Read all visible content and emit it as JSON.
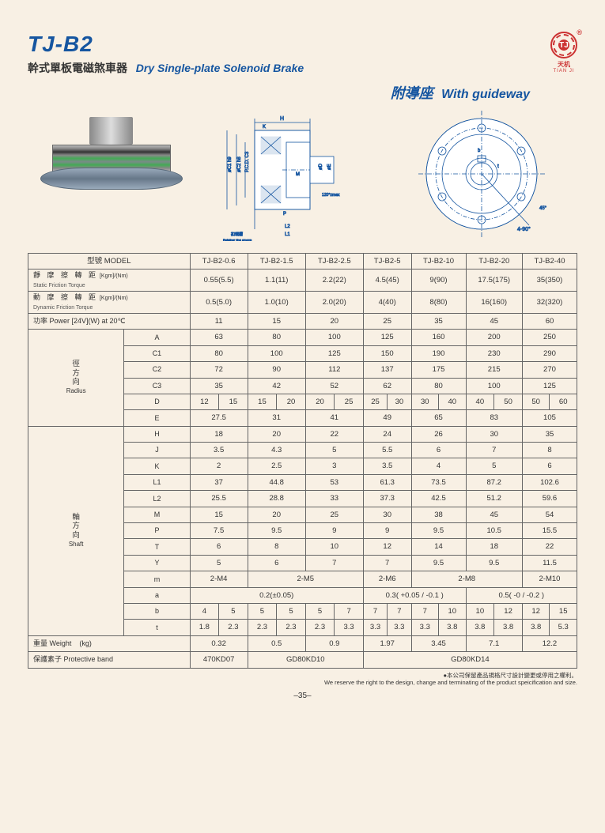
{
  "header": {
    "model_title": "TJ-B2",
    "subtitle_cn": "幹式單板電磁煞車器",
    "subtitle_en": "Dry Single-plate Solenoid Brake",
    "logo_top": "TJ",
    "logo_cn": "天机",
    "logo_en": "TIAN JI",
    "guideway_cn": "附導座",
    "guideway_en": "With guideway"
  },
  "models": [
    "TJ-B2-0.6",
    "TJ-B2-1.5",
    "TJ-B2-2.5",
    "TJ-B2-5",
    "TJ-B2-10",
    "TJ-B2-20",
    "TJ-B2-40"
  ],
  "rows": {
    "model_label": "型號 MODEL",
    "static_cn": "靜 摩 擦 轉 距",
    "static_en": "Static Friction Torque",
    "static_unit": "[Kgm]/(Nm)",
    "static": [
      "0.55(5.5)",
      "1.1(11)",
      "2.2(22)",
      "4.5(45)",
      "9(90)",
      "17.5(175)",
      "35(350)"
    ],
    "dyn_cn": "動 摩 擦 轉 距",
    "dyn_en": "Dynamic Friction Torque",
    "dyn_unit": "[Kgm]/(Nm)",
    "dyn": [
      "0.5(5.0)",
      "1.0(10)",
      "2.0(20)",
      "4(40)",
      "8(80)",
      "16(160)",
      "32(320)"
    ],
    "power_label": "功率 Power [24V](W) at 20℃",
    "power": [
      "11",
      "15",
      "20",
      "25",
      "35",
      "45",
      "60"
    ],
    "radius_cn": "徑方向",
    "radius_en": "Radius",
    "A": [
      "63",
      "80",
      "100",
      "125",
      "160",
      "200",
      "250"
    ],
    "C1": [
      "80",
      "100",
      "125",
      "150",
      "190",
      "230",
      "290"
    ],
    "C2": [
      "72",
      "90",
      "112",
      "137",
      "175",
      "215",
      "270"
    ],
    "C3": [
      "35",
      "42",
      "52",
      "62",
      "80",
      "100",
      "125"
    ],
    "D": [
      [
        "12",
        "15"
      ],
      [
        "15",
        "20"
      ],
      [
        "20",
        "25"
      ],
      [
        "25",
        "30"
      ],
      [
        "30",
        "40"
      ],
      [
        "40",
        "50"
      ],
      [
        "50",
        "60"
      ]
    ],
    "E": [
      "27.5",
      "31",
      "41",
      "49",
      "65",
      "83",
      "105"
    ],
    "shaft_cn": "軸方向",
    "shaft_en": "Shaft",
    "H": [
      "18",
      "20",
      "22",
      "24",
      "26",
      "30",
      "35"
    ],
    "J": [
      "3.5",
      "4.3",
      "5",
      "5.5",
      "6",
      "7",
      "8"
    ],
    "K": [
      "2",
      "2.5",
      "3",
      "3.5",
      "4",
      "5",
      "6"
    ],
    "L1": [
      "37",
      "44.8",
      "53",
      "61.3",
      "73.5",
      "87.2",
      "102.6"
    ],
    "L2": [
      "25.5",
      "28.8",
      "33",
      "37.3",
      "42.5",
      "51.2",
      "59.6"
    ],
    "M": [
      "15",
      "20",
      "25",
      "30",
      "38",
      "45",
      "54"
    ],
    "P": [
      "7.5",
      "9.5",
      "9",
      "9",
      "9.5",
      "10.5",
      "15.5"
    ],
    "T": [
      "6",
      "8",
      "10",
      "12",
      "14",
      "18",
      "22"
    ],
    "Y": [
      "5",
      "6",
      "7",
      "7",
      "9.5",
      "9.5",
      "11.5"
    ],
    "m_colspan": {
      "vals": [
        "2-M4",
        "2-M5",
        "2-M6",
        "2-M8",
        "2-M10"
      ],
      "spans": [
        1,
        2,
        1,
        2,
        1
      ]
    },
    "a_colspan": {
      "vals": [
        "0.2(±0.05)",
        "0.3( +0.05 / -0.1 )",
        "0.5( -0 / -0.2 )"
      ],
      "spans": [
        3,
        2,
        2
      ]
    },
    "b": [
      [
        "4",
        "5"
      ],
      [
        "5",
        "5"
      ],
      [
        "5",
        "7"
      ],
      [
        "7",
        "7"
      ],
      [
        "7",
        "10"
      ],
      [
        "10",
        "12"
      ],
      [
        "12",
        "15"
      ]
    ],
    "t": [
      [
        "1.8",
        "2.3"
      ],
      [
        "2.3",
        "2.3"
      ],
      [
        "2.3",
        "3.3"
      ],
      [
        "3.3",
        "3.3"
      ],
      [
        "3.3",
        "3.8"
      ],
      [
        "3.8",
        "3.8"
      ],
      [
        "3.8",
        "5.3"
      ]
    ],
    "weight_label": "重量 Weight",
    "weight_unit": "(kg)",
    "weight": [
      "0.32",
      "0.5",
      "0.9",
      "1.97",
      "3.45",
      "7.1",
      "12.2"
    ],
    "band_label": "保護素子 Protective band",
    "band": {
      "vals": [
        "470KD07",
        "GD80KD10",
        "GD80KD14"
      ],
      "spans": [
        1,
        2,
        4
      ]
    }
  },
  "footer": {
    "note_cn": "●本公司保留產品規格尺寸設計變更或停用之權利。",
    "note_en": "We reserve the right to the design, change and terminating of the product speicification and size.",
    "page": "–35–"
  },
  "colors": {
    "brand": "#1555a0",
    "border": "#666",
    "bg": "#f8f0e4"
  }
}
